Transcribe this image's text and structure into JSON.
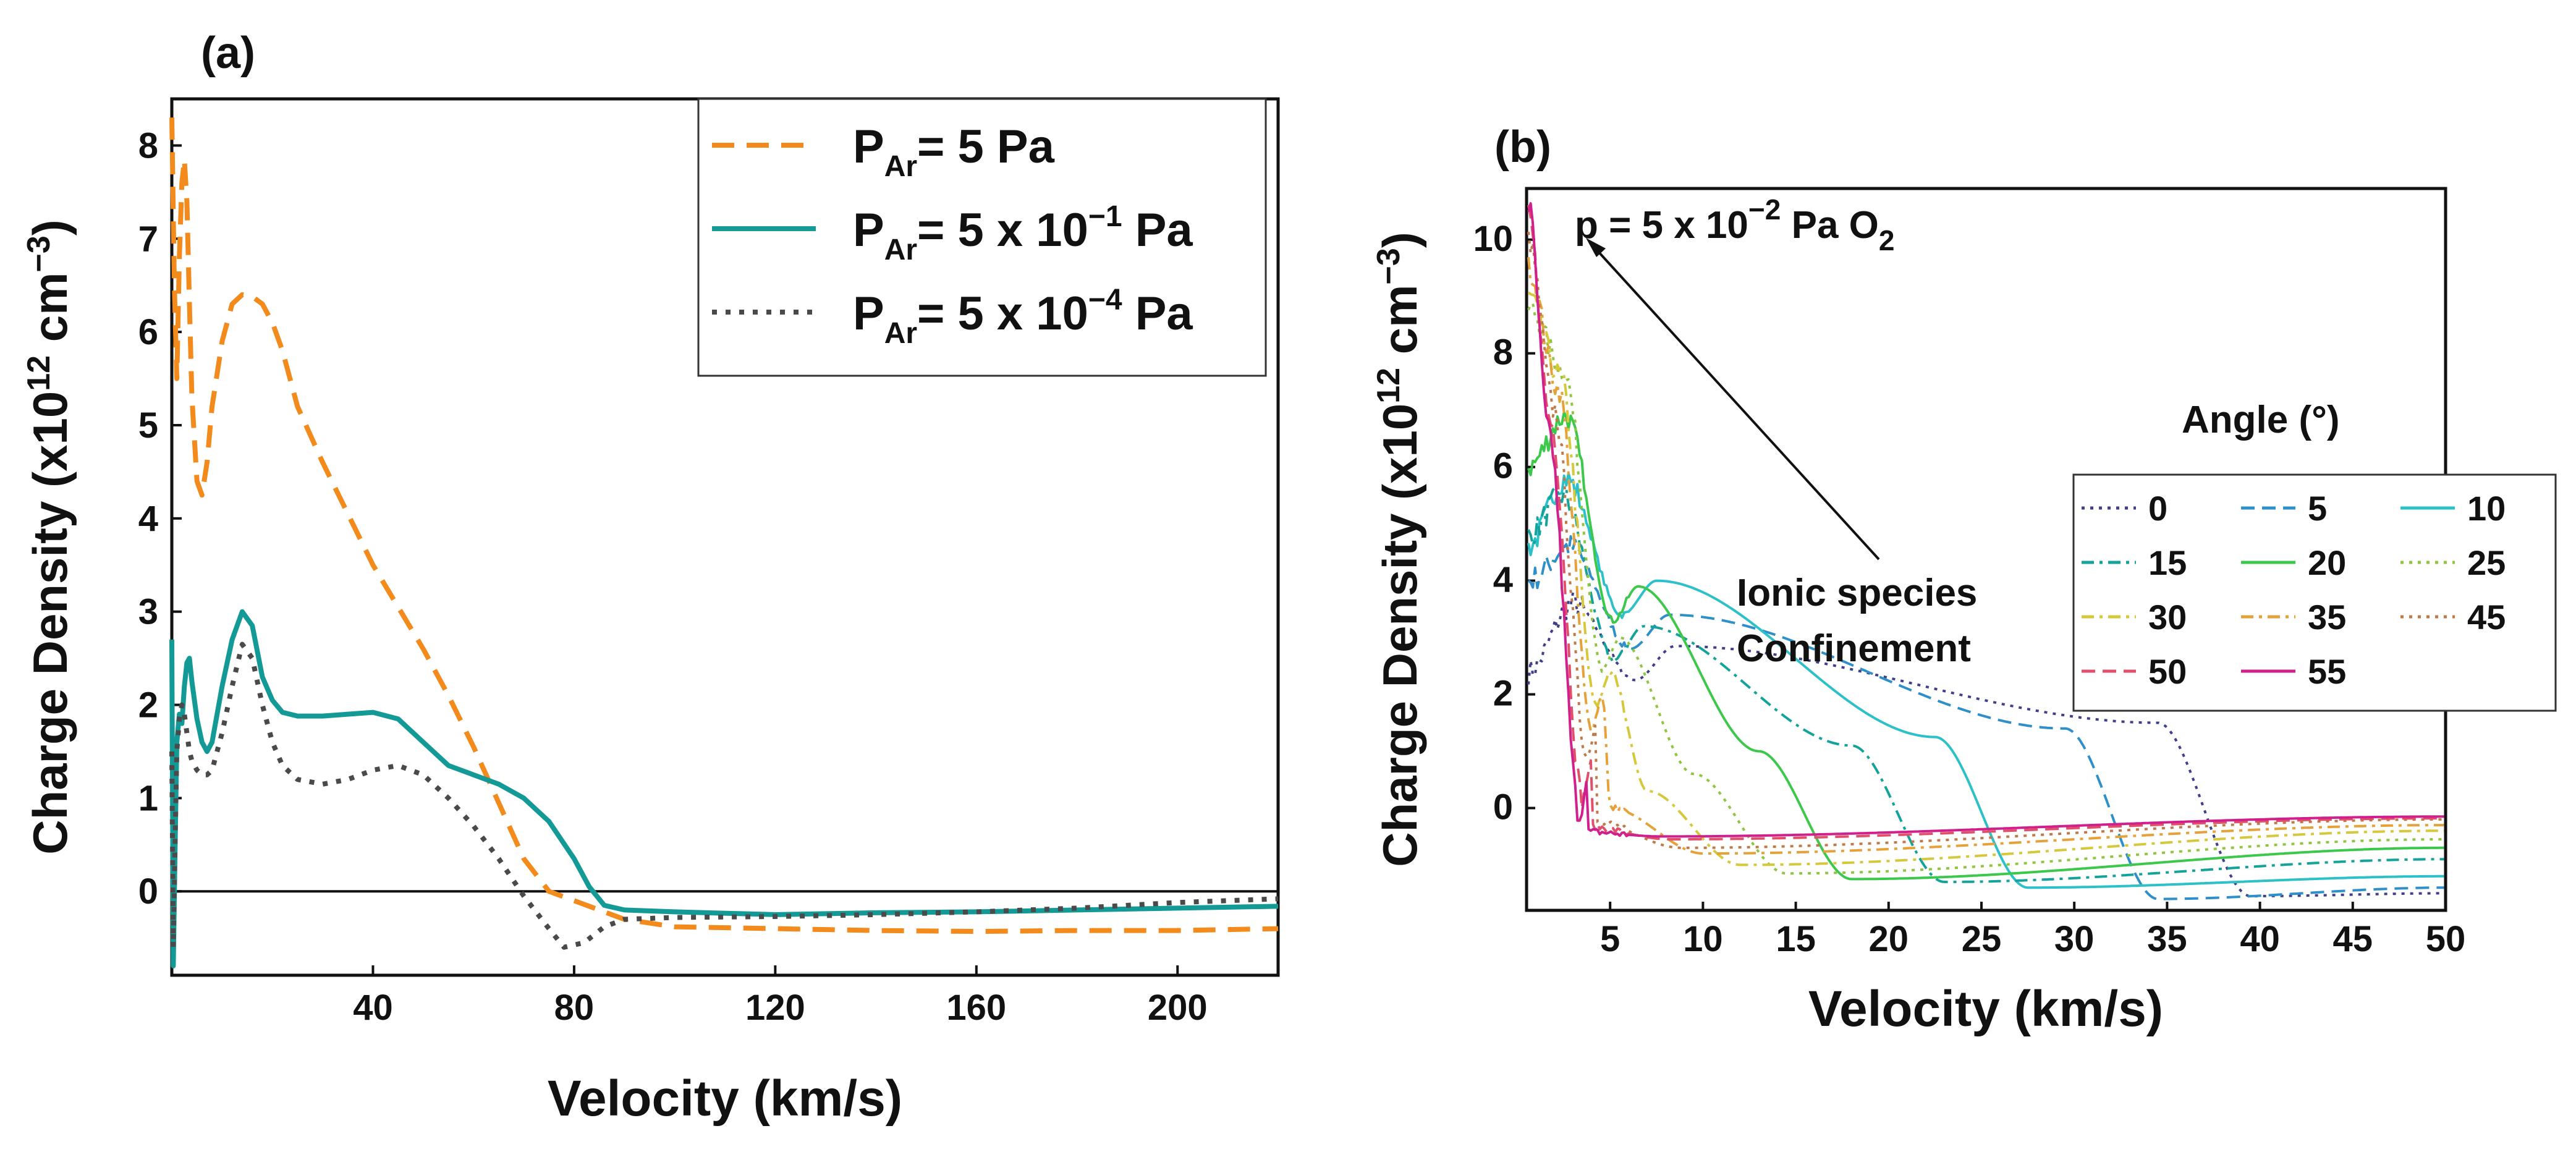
{
  "figure": {
    "chart_data": [
      {
        "type": "line",
        "panel_label": "(a)",
        "xlabel": "Velocity (km/s)",
        "ylabel": "Charge Density (x10¹² cm⁻³)",
        "xlim": [
          0,
          220
        ],
        "ylim": [
          -0.9,
          8.5
        ],
        "xticks": [
          40,
          80,
          120,
          160,
          200
        ],
        "yticks": [
          0,
          1,
          2,
          3,
          4,
          5,
          6,
          7,
          8
        ],
        "zero_line": true,
        "legend_position": "top-right",
        "series": [
          {
            "name": "P_Ar = 5 Pa",
            "legend_parts": [
              "P",
              "Ar",
              "= 5  Pa",
              ""
            ],
            "color": "#f28a1c",
            "dash": "dashed",
            "x": [
              0,
              0.5,
              1,
              1.5,
              2,
              2.5,
              3,
              3.5,
              4,
              5,
              6,
              7,
              8,
              10,
              12,
              14,
              16,
              18,
              20,
              22,
              25,
              30,
              35,
              40,
              45,
              50,
              55,
              60,
              65,
              70,
              75,
              80,
              85,
              90,
              100,
              120,
              140,
              160,
              180,
              200,
              220
            ],
            "y": [
              8.3,
              6.5,
              5.5,
              6.8,
              7.6,
              7.85,
              7.4,
              6.3,
              5.3,
              4.4,
              4.25,
              4.6,
              5.2,
              5.9,
              6.3,
              6.4,
              6.38,
              6.3,
              6.1,
              5.8,
              5.2,
              4.6,
              4.05,
              3.5,
              3.05,
              2.6,
              2.1,
              1.55,
              0.95,
              0.35,
              0.0,
              -0.1,
              -0.2,
              -0.3,
              -0.38,
              -0.4,
              -0.42,
              -0.43,
              -0.42,
              -0.42,
              -0.4
            ]
          },
          {
            "name": "P_Ar = 5 x 10^-1 Pa",
            "legend_parts": [
              "P",
              "Ar",
              "= 5 x 10",
              "−1",
              " Pa"
            ],
            "color": "#139a97",
            "dash": "solid",
            "x": [
              0,
              0.3,
              0.6,
              1,
              1.5,
              2,
              2.5,
              3,
              3.5,
              4,
              5,
              6,
              7,
              8,
              10,
              12,
              14,
              16,
              18,
              20,
              22,
              25,
              30,
              35,
              40,
              45,
              50,
              55,
              60,
              65,
              70,
              75,
              80,
              83,
              86,
              90,
              100,
              120,
              140,
              160,
              180,
              200,
              220
            ],
            "y": [
              2.7,
              -0.8,
              0.3,
              1.6,
              1.9,
              1.8,
              2.2,
              2.45,
              2.5,
              2.25,
              1.85,
              1.6,
              1.5,
              1.6,
              2.2,
              2.7,
              3.0,
              2.85,
              2.3,
              2.05,
              1.92,
              1.88,
              1.88,
              1.9,
              1.92,
              1.85,
              1.6,
              1.35,
              1.25,
              1.15,
              1.0,
              0.75,
              0.35,
              0.05,
              -0.15,
              -0.2,
              -0.22,
              -0.25,
              -0.23,
              -0.22,
              -0.2,
              -0.18,
              -0.16
            ]
          },
          {
            "name": "P_Ar = 5 x 10^-4 Pa",
            "legend_parts": [
              "P",
              "Ar",
              "= 5 x 10",
              "−4",
              " Pa"
            ],
            "color": "#4a4a4a",
            "dash": "dotted",
            "x": [
              0,
              0.3,
              0.6,
              1,
              1.5,
              2,
              2.5,
              3,
              3.5,
              4,
              5,
              6,
              7,
              8,
              10,
              12,
              14,
              16,
              18,
              20,
              22,
              25,
              30,
              35,
              40,
              45,
              50,
              55,
              60,
              65,
              70,
              75,
              78,
              82,
              86,
              90,
              100,
              120,
              140,
              160,
              180,
              200,
              220
            ],
            "y": [
              1.5,
              -0.6,
              0.4,
              1.5,
              1.85,
              2.0,
              1.9,
              1.7,
              1.5,
              1.4,
              1.3,
              1.25,
              1.25,
              1.3,
              1.7,
              2.2,
              2.65,
              2.5,
              2.0,
              1.6,
              1.35,
              1.2,
              1.15,
              1.2,
              1.3,
              1.35,
              1.25,
              1.0,
              0.7,
              0.35,
              -0.05,
              -0.4,
              -0.6,
              -0.55,
              -0.38,
              -0.3,
              -0.28,
              -0.27,
              -0.25,
              -0.22,
              -0.18,
              -0.12,
              -0.08
            ]
          }
        ]
      },
      {
        "type": "line",
        "panel_label": "(b)",
        "xlabel": "Velocity (km/s)",
        "ylabel": "Charge Density (x10¹² cm⁻³)",
        "xlim": [
          0.5,
          50
        ],
        "ylim": [
          -1.8,
          10.9
        ],
        "xticks": [
          5,
          10,
          15,
          20,
          25,
          30,
          35,
          40,
          45,
          50
        ],
        "yticks": [
          0,
          2,
          4,
          6,
          8,
          10
        ],
        "annotation_pressure": "p = 5 x 10^-2 Pa O2",
        "annotation_pressure_parts": [
          "p = 5 x 10",
          "−2",
          " Pa O",
          "2"
        ],
        "annotation_text": [
          "Ionic species",
          "Confinement"
        ],
        "legend_title": "Angle (°)",
        "legend_position": "right",
        "series": [
          {
            "name": "0",
            "color": "#3f3f8a",
            "dash": "dotted",
            "start": 2.4,
            "peak_v": 3.0,
            "peak": 3.6,
            "hump_v": 8.5,
            "hump": 2.85,
            "shoulder": 1.5,
            "drop": 36.5,
            "trough": -1.55,
            "end": -1.5
          },
          {
            "name": "5",
            "color": "#2f8fc8",
            "dash": "dashed",
            "start": 4.0,
            "peak_v": 2.8,
            "peak": 4.6,
            "hump_v": 8.2,
            "hump": 3.4,
            "shoulder": 1.4,
            "drop": 31.5,
            "trough": -1.6,
            "end": -1.4
          },
          {
            "name": "10",
            "color": "#2cc0c8",
            "dash": "solid",
            "start": 4.6,
            "peak_v": 2.6,
            "peak": 5.8,
            "hump_v": 7.5,
            "hump": 4.0,
            "shoulder": 1.25,
            "drop": 24.5,
            "trough": -1.4,
            "end": -1.2
          },
          {
            "name": "15",
            "color": "#13a39a",
            "dash": "dashdot",
            "start": 4.8,
            "peak_v": 2.4,
            "peak": 5.5,
            "hump_v": 6.8,
            "hump": 3.2,
            "shoulder": 1.1,
            "drop": 20.0,
            "trough": -1.3,
            "end": -0.9
          },
          {
            "name": "20",
            "color": "#3cc84b",
            "dash": "solid",
            "start": 6.0,
            "peak_v": 2.6,
            "peak": 6.9,
            "hump_v": 6.5,
            "hump": 3.9,
            "shoulder": 1.0,
            "drop": 15.0,
            "trough": -1.25,
            "end": -0.7
          },
          {
            "name": "25",
            "color": "#8ec63f",
            "dash": "dotted",
            "start": 8.8,
            "peak_v": 2.5,
            "peak": 7.7,
            "hump_v": 5.5,
            "hump": 3.0,
            "shoulder": 0.6,
            "drop": 11.5,
            "trough": -1.15,
            "end": -0.55
          },
          {
            "name": "30",
            "color": "#d5c83a",
            "dash": "dashdot",
            "start": 9.0,
            "peak_v": 2.3,
            "peak": 7.6,
            "hump_v": 5.0,
            "hump": 2.4,
            "shoulder": 0.3,
            "drop": 9.0,
            "trough": -1.0,
            "end": -0.4
          },
          {
            "name": "35",
            "color": "#e6a23a",
            "dash": "dashdot",
            "start": 9.5,
            "peak_v": 2.2,
            "peak": 7.4,
            "hump_v": 4.6,
            "hump": 2.0,
            "shoulder": 0.0,
            "drop": 7.0,
            "trough": -0.8,
            "end": -0.3
          },
          {
            "name": "45",
            "color": "#c07a4a",
            "dash": "dotted",
            "start": 10.0,
            "peak_v": 2.0,
            "peak": 7.0,
            "hump_v": 4.3,
            "hump": 1.5,
            "shoulder": -0.2,
            "drop": 5.8,
            "trough": -0.7,
            "end": -0.2
          },
          {
            "name": "50",
            "color": "#e0506a",
            "dash": "dashed",
            "start": 10.4,
            "peak_v": 1.8,
            "peak": 6.8,
            "hump_v": 4.0,
            "hump": 0.8,
            "shoulder": -0.3,
            "drop": 5.2,
            "trough": -0.55,
            "end": -0.18
          },
          {
            "name": "55",
            "color": "#d11f8c",
            "dash": "solid",
            "start": 10.6,
            "peak_v": 1.7,
            "peak": 6.6,
            "hump_v": 3.8,
            "hump": 0.5,
            "shoulder": -0.4,
            "drop": 4.8,
            "trough": -0.5,
            "end": -0.15
          }
        ]
      }
    ]
  }
}
